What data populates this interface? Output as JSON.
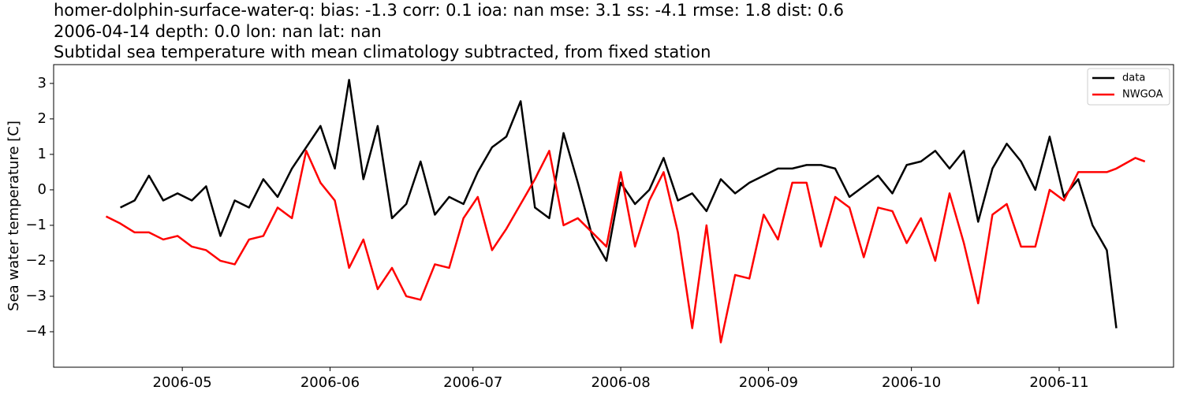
{
  "chart_data": {
    "type": "line",
    "title": "homer-dolphin-surface-water-q: bias: -1.3  corr: 0.1  ioa: nan  mse: 3.1  ss: -4.1  rmse: 1.8  dist: 0.6",
    "subtitle": "2006-04-14 depth: 0.0 lon: nan lat: nan",
    "subtitle2": "Subtidal sea temperature with mean climatology subtracted, from fixed station",
    "ylabel": "Sea water temperature [C]",
    "x": [
      "2006-04-15",
      "2006-04-18",
      "2006-04-21",
      "2006-04-24",
      "2006-04-27",
      "2006-04-30",
      "2006-05-03",
      "2006-05-06",
      "2006-05-09",
      "2006-05-12",
      "2006-05-15",
      "2006-05-18",
      "2006-05-21",
      "2006-05-24",
      "2006-05-27",
      "2006-05-30",
      "2006-06-02",
      "2006-06-05",
      "2006-06-08",
      "2006-06-11",
      "2006-06-14",
      "2006-06-17",
      "2006-06-20",
      "2006-06-23",
      "2006-06-26",
      "2006-06-29",
      "2006-07-02",
      "2006-07-05",
      "2006-07-08",
      "2006-07-11",
      "2006-07-14",
      "2006-07-17",
      "2006-07-20",
      "2006-07-23",
      "2006-07-26",
      "2006-07-29",
      "2006-08-01",
      "2006-08-04",
      "2006-08-07",
      "2006-08-10",
      "2006-08-13",
      "2006-08-16",
      "2006-08-19",
      "2006-08-22",
      "2006-08-25",
      "2006-08-28",
      "2006-08-31",
      "2006-09-03",
      "2006-09-06",
      "2006-09-09",
      "2006-09-12",
      "2006-09-15",
      "2006-09-18",
      "2006-09-21",
      "2006-09-24",
      "2006-09-27",
      "2006-09-30",
      "2006-10-03",
      "2006-10-06",
      "2006-10-09",
      "2006-10-12",
      "2006-10-15",
      "2006-10-18",
      "2006-10-21",
      "2006-10-24",
      "2006-10-27",
      "2006-10-30",
      "2006-11-02",
      "2006-11-05",
      "2006-11-08",
      "2006-11-11",
      "2006-11-13",
      "2006-11-17",
      "2006-11-19"
    ],
    "series": [
      {
        "name": "data",
        "color": "#000000",
        "values": [
          null,
          -0.5,
          -0.3,
          0.4,
          -0.3,
          -0.1,
          -0.3,
          0.1,
          -1.3,
          -0.3,
          -0.5,
          0.3,
          -0.2,
          0.6,
          1.2,
          1.8,
          0.6,
          3.1,
          0.3,
          1.8,
          -0.8,
          -0.4,
          0.8,
          -0.7,
          -0.2,
          -0.4,
          0.5,
          1.2,
          1.5,
          2.5,
          -0.5,
          -0.8,
          1.6,
          0.2,
          -1.3,
          -2.0,
          0.2,
          -0.4,
          0.0,
          0.9,
          -0.3,
          -0.1,
          -0.6,
          0.3,
          -0.1,
          0.2,
          0.4,
          0.6,
          0.6,
          0.7,
          0.7,
          0.6,
          -0.2,
          0.1,
          0.4,
          -0.1,
          0.7,
          0.8,
          1.1,
          0.6,
          1.1,
          -0.9,
          0.6,
          1.3,
          0.8,
          0.0,
          1.5,
          -0.2,
          0.3,
          -1.0,
          -1.7,
          -3.9,
          null,
          null
        ]
      },
      {
        "name": "NWGOA",
        "color": "#ff0000",
        "values": [
          -0.75,
          -0.95,
          -1.2,
          -1.2,
          -1.4,
          -1.3,
          -1.6,
          -1.7,
          -2.0,
          -2.1,
          -1.4,
          -1.3,
          -0.5,
          -0.8,
          1.1,
          0.2,
          -0.3,
          -2.2,
          -1.4,
          -2.8,
          -2.2,
          -3.0,
          -3.1,
          -2.1,
          -2.2,
          -0.8,
          -0.2,
          -1.7,
          -1.1,
          -0.4,
          0.3,
          1.1,
          -1.0,
          -0.8,
          -1.2,
          -1.6,
          0.5,
          -1.6,
          -0.3,
          0.5,
          -1.2,
          -3.9,
          -1.0,
          -4.3,
          -2.4,
          -2.5,
          -0.7,
          -1.4,
          0.2,
          0.2,
          -1.6,
          -0.2,
          -0.5,
          -1.9,
          -0.5,
          -0.6,
          -1.5,
          -0.8,
          -2.0,
          -0.1,
          -1.5,
          -3.2,
          -0.7,
          -0.4,
          -1.6,
          -1.6,
          0.0,
          -0.3,
          0.5,
          0.5,
          0.5,
          0.6,
          0.9,
          0.8
        ]
      }
    ],
    "xlim": [
      "2006-04-04",
      "2006-11-25"
    ],
    "xticks": [
      "2006-05",
      "2006-06",
      "2006-07",
      "2006-08",
      "2006-09",
      "2006-10",
      "2006-11"
    ],
    "ylim": [
      -5.0,
      3.53
    ],
    "yticks": [
      {
        "value": -4,
        "label": "−4"
      },
      {
        "value": -3,
        "label": "−3"
      },
      {
        "value": -2,
        "label": "−2"
      },
      {
        "value": -1,
        "label": "−1"
      },
      0,
      1,
      2,
      3
    ],
    "legend": "upper right",
    "grid": false
  }
}
